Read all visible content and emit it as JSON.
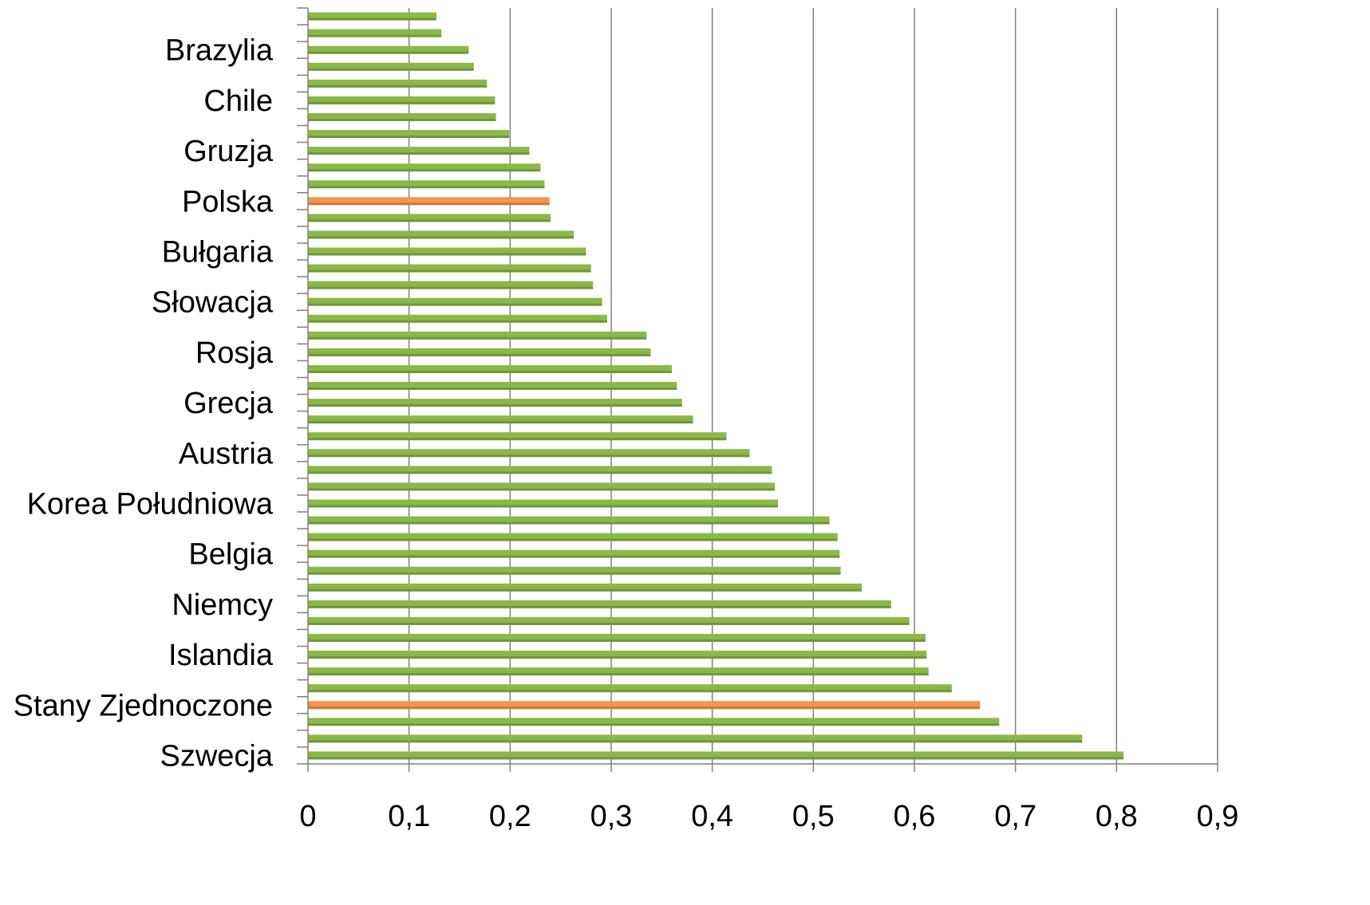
{
  "chart_data": {
    "type": "bar",
    "orientation": "horizontal",
    "title": "",
    "xlabel": "",
    "ylabel": "",
    "xlim": [
      0,
      0.9
    ],
    "x_ticks": [
      "0",
      "0,1",
      "0,2",
      "0,3",
      "0,4",
      "0,5",
      "0,6",
      "0,7",
      "0,8",
      "0,9"
    ],
    "grid": "vertical",
    "legend": "none",
    "colors": {
      "default": "#8cb847",
      "highlight": "#f79447",
      "grid": "#808080",
      "axis": "#808080"
    },
    "categories": [
      "",
      "",
      "Brazylia",
      "",
      "",
      "Chile",
      "",
      "",
      "Gruzja",
      "",
      "",
      "Polska",
      "",
      "",
      "Bułgaria",
      "",
      "",
      "Słowacja",
      "",
      "",
      "Rosja",
      "",
      "",
      "Grecja",
      "",
      "",
      "Austria",
      "",
      "",
      "Korea Południowa",
      "",
      "",
      "Belgia",
      "",
      "",
      "Niemcy",
      "",
      "",
      "Islandia",
      "",
      "",
      "Stany Zjednoczone",
      "",
      "",
      "Szwecja"
    ],
    "values": [
      0.127,
      0.132,
      0.159,
      0.164,
      0.177,
      0.185,
      0.186,
      0.199,
      0.219,
      0.23,
      0.234,
      0.239,
      0.24,
      0.263,
      0.275,
      0.28,
      0.282,
      0.291,
      0.296,
      0.335,
      0.339,
      0.36,
      0.365,
      0.37,
      0.381,
      0.414,
      0.437,
      0.459,
      0.462,
      0.465,
      0.516,
      0.524,
      0.526,
      0.527,
      0.548,
      0.577,
      0.595,
      0.611,
      0.612,
      0.614,
      0.637,
      0.665,
      0.684,
      0.766,
      0.807
    ],
    "highlighted": [
      "Polska",
      "Stany Zjednoczone"
    ]
  }
}
